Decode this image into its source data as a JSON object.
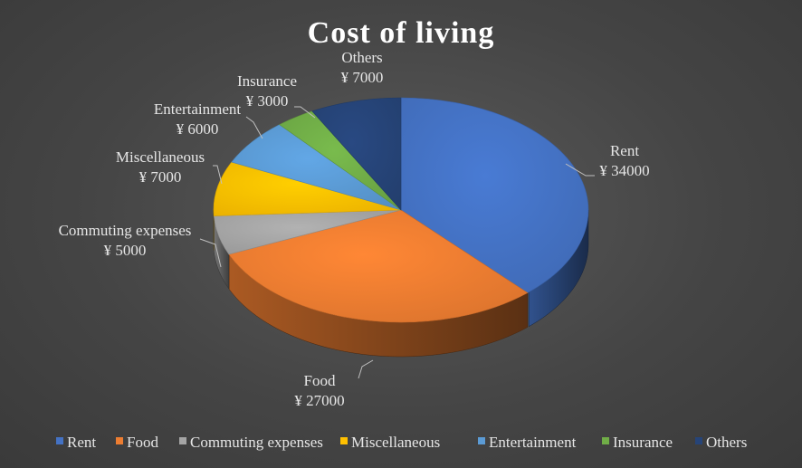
{
  "chart_data": {
    "type": "pie",
    "title": "Cost of living",
    "currency_prefix": "¥ ",
    "categories": [
      "Rent",
      "Food",
      "Commuting expenses",
      "Miscellaneous",
      "Entertainment",
      "Insurance",
      "Others"
    ],
    "values": [
      34000,
      27000,
      5000,
      7000,
      6000,
      3000,
      7000
    ],
    "value_labels": [
      "¥ 34000",
      "¥ 27000",
      "¥ 5000",
      "¥ 7000",
      "¥ 6000",
      "¥ 3000",
      "¥ 7000"
    ],
    "colors": [
      "#4472C4",
      "#ED7D31",
      "#A5A5A5",
      "#FFC000",
      "#5B9BD5",
      "#70AD47",
      "#264478"
    ],
    "legend_position": "bottom",
    "style": "3d-pie"
  }
}
